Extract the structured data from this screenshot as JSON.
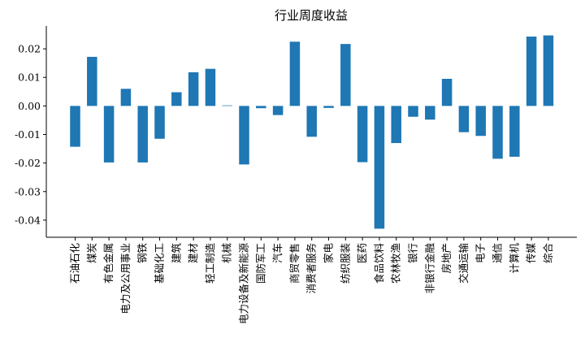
{
  "chart_data": {
    "type": "bar",
    "title": "行业周度收益",
    "xlabel": "",
    "ylabel": "",
    "ylim": [
      -0.046,
      0.028
    ],
    "yticks": [
      -0.04,
      -0.03,
      -0.02,
      -0.01,
      0.0,
      0.01,
      0.02
    ],
    "ytick_labels": [
      "-0.04",
      "-0.03",
      "-0.02",
      "-0.01",
      "0.00",
      "0.01",
      "0.02"
    ],
    "grid": false,
    "bar_color": "#1f77b4",
    "categories": [
      "石油石化",
      "煤炭",
      "有色金属",
      "电力及公用事业",
      "钢铁",
      "基础化工",
      "建筑",
      "建材",
      "轻工制造",
      "机械",
      "电力设备及新能源",
      "国防军工",
      "汽车",
      "商贸零售",
      "消费者服务",
      "家电",
      "纺织服装",
      "医药",
      "食品饮料",
      "农林牧渔",
      "银行",
      "非银行金融",
      "房地产",
      "交通运输",
      "电子",
      "通信",
      "计算机",
      "传媒",
      "综合"
    ],
    "values": [
      -0.0143,
      0.0172,
      -0.0198,
      0.006,
      -0.0198,
      -0.0115,
      0.0048,
      0.0118,
      0.013,
      0.0002,
      -0.0205,
      -0.0008,
      -0.0032,
      0.0225,
      -0.0108,
      -0.0007,
      0.0217,
      -0.0197,
      -0.043,
      -0.013,
      -0.0038,
      -0.0048,
      0.0095,
      -0.0092,
      -0.0105,
      -0.0185,
      -0.0178,
      0.0243,
      0.0247
    ]
  }
}
